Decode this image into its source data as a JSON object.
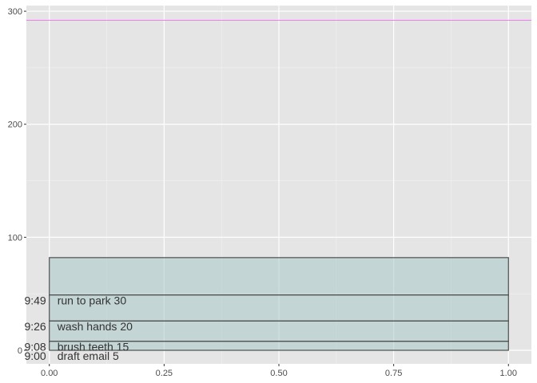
{
  "chart_data": {
    "type": "bar",
    "title": "",
    "xlabel": "",
    "ylabel": "",
    "xlim": [
      -0.05,
      1.05
    ],
    "ylim": [
      -12,
      305
    ],
    "x_ticks": [
      0,
      0.25,
      0.5,
      0.75,
      1
    ],
    "x_tick_labels": [
      "0.00",
      "0.25",
      "0.50",
      "0.75",
      "1.00"
    ],
    "y_ticks": [
      0,
      100,
      200,
      300
    ],
    "y_tick_labels": [
      "0",
      "100",
      "200",
      "300"
    ],
    "grid": true,
    "panel_background": "#e5e5e5",
    "bar_fill": "#a9c8c8",
    "bar_stroke": "#4d4d4d",
    "reference_line": {
      "y": 292,
      "color": "#ee82ee"
    },
    "stack_x": [
      0,
      1
    ],
    "segments": [
      {
        "start": 0,
        "end": 8,
        "label": "draft email 5",
        "clock": "9:00"
      },
      {
        "start": 8,
        "end": 26,
        "label": "brush teeth 15",
        "clock": "9:08"
      },
      {
        "start": 26,
        "end": 49,
        "label": "wash hands 20",
        "clock": "9:26"
      },
      {
        "start": 49,
        "end": 82,
        "label": "run to park 30",
        "clock": "9:49"
      }
    ]
  }
}
